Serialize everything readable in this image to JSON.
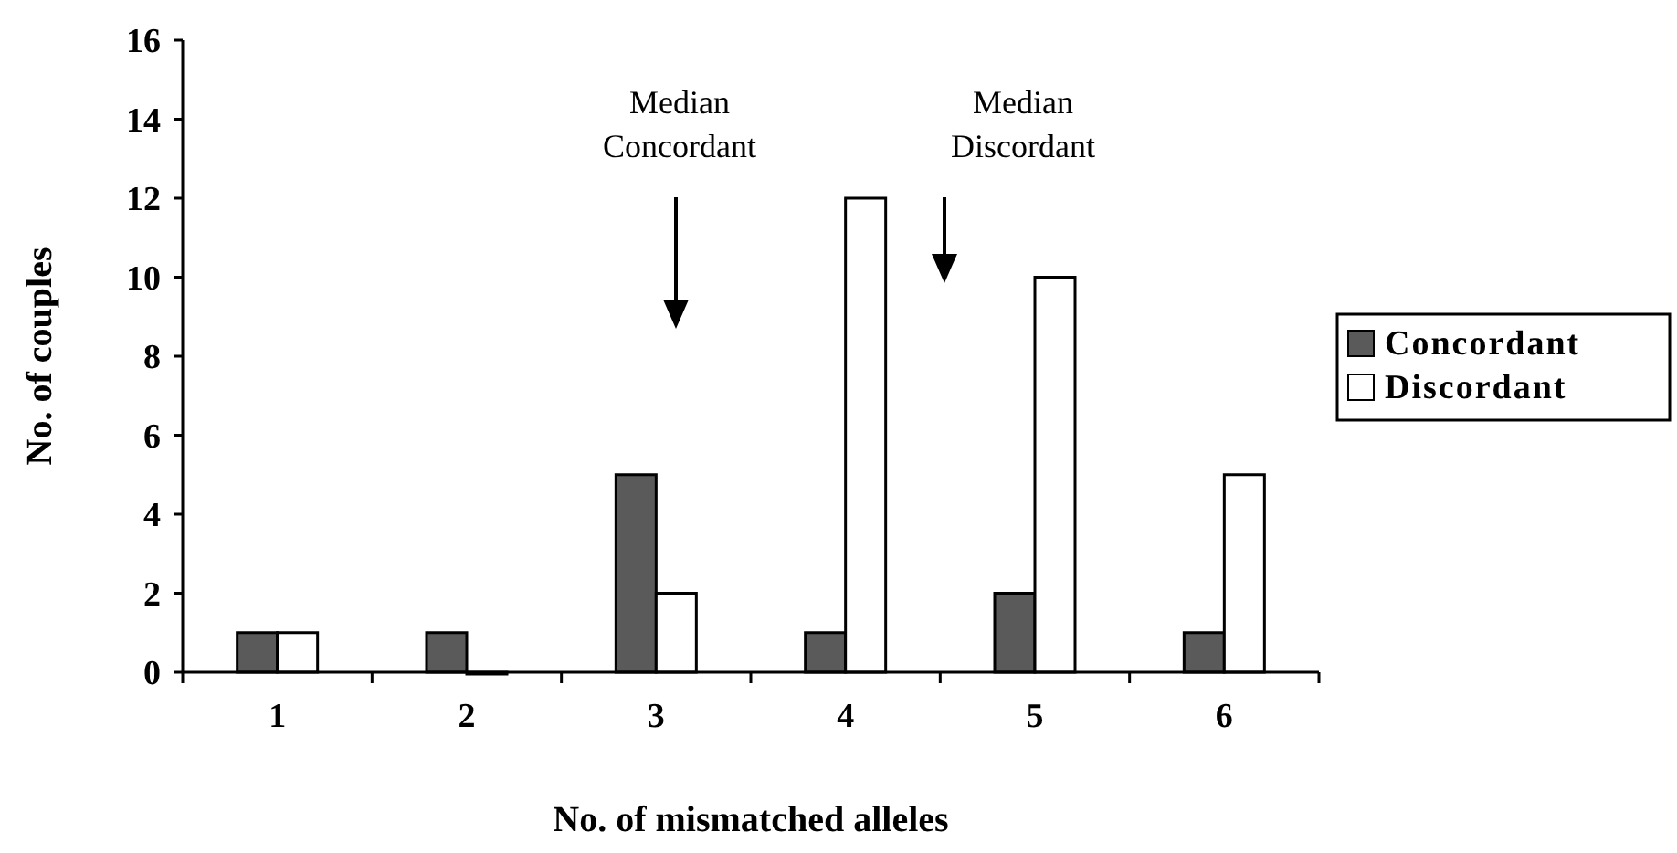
{
  "chart_data": {
    "type": "bar",
    "categories": [
      "1",
      "2",
      "3",
      "4",
      "5",
      "6"
    ],
    "series": [
      {
        "name": "Concordant",
        "color": "#5a5a5a",
        "values": [
          1,
          1,
          5,
          1,
          2,
          1
        ]
      },
      {
        "name": "Discordant",
        "color": "#ffffff",
        "values": [
          1,
          0,
          2,
          12,
          10,
          5
        ]
      }
    ],
    "ylim": [
      0,
      16
    ],
    "yticks": [
      0,
      2,
      4,
      6,
      8,
      10,
      12,
      14,
      16
    ],
    "xlabel": "No. of mismatched alleles",
    "ylabel": "No. of couples",
    "annotations": [
      "Median\nConcordant",
      "Median\nDiscordant"
    ],
    "legend": "right",
    "grid": false
  }
}
